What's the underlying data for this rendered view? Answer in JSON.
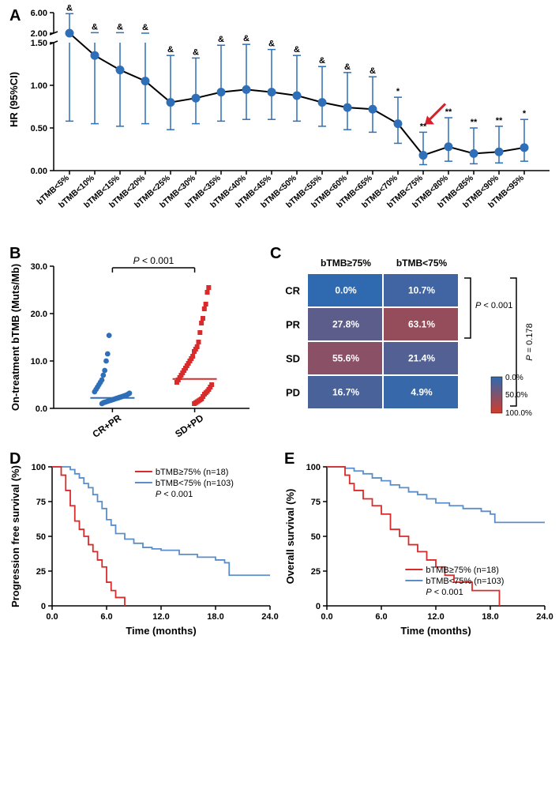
{
  "panelA": {
    "label": "A",
    "ylabel": "HR (95%CI)",
    "y_breaks_low": [
      0.0,
      0.5,
      1.0,
      1.5
    ],
    "y_breaks_high": [
      2.0,
      6.0
    ],
    "categories": [
      "bTMB<5%",
      "bTMB<10%",
      "bTMB<15%",
      "bTMB<20%",
      "bTMB<25%",
      "bTMB<30%",
      "bTMB<35%",
      "bTMB<40%",
      "bTMB<45%",
      "bTMB<50%",
      "bTMB<55%",
      "bTMB<60%",
      "bTMB<65%",
      "bTMB<70%",
      "bTMB<75%",
      "bTMB<80%",
      "bTMB<85%",
      "bTMB<90%",
      "bTMB<95%"
    ],
    "hr": [
      1.55,
      1.35,
      1.18,
      1.05,
      0.8,
      0.85,
      0.92,
      0.95,
      0.92,
      0.88,
      0.8,
      0.74,
      0.72,
      0.55,
      0.18,
      0.28,
      0.2,
      0.22,
      0.27
    ],
    "low": [
      0.58,
      0.55,
      0.52,
      0.55,
      0.48,
      0.55,
      0.58,
      0.6,
      0.6,
      0.58,
      0.52,
      0.48,
      0.45,
      0.32,
      0.07,
      0.11,
      0.08,
      0.09,
      0.11
    ],
    "high": [
      5.8,
      2.1,
      2.1,
      1.75,
      1.35,
      1.32,
      1.47,
      1.48,
      1.42,
      1.35,
      1.22,
      1.15,
      1.1,
      0.86,
      0.45,
      0.62,
      0.5,
      0.52,
      0.6
    ],
    "sig": [
      "&",
      "&",
      "&",
      "&",
      "&",
      "&",
      "&",
      "&",
      "&",
      "&",
      "&",
      "&",
      "&",
      "*",
      "**",
      "**",
      "**",
      "**",
      "*"
    ],
    "arrow_target_index": 14,
    "colors": {
      "marker": "#2f6fb7",
      "line": "#000000",
      "arrow": "#d8202a"
    }
  },
  "panelB": {
    "label": "B",
    "ylabel": "On-treatment bTMB (Muts/Mb)",
    "xlabels": [
      "CR+PR",
      "SD+PD"
    ],
    "pvalue": "P < 0.001",
    "ylim": [
      0,
      30
    ],
    "ytick_step": 10,
    "median": [
      2.2,
      6.2
    ],
    "points_crpr": [
      1.0,
      1.2,
      1.3,
      1.4,
      1.5,
      1.6,
      1.7,
      1.8,
      1.9,
      2.0,
      2.1,
      2.2,
      2.3,
      2.4,
      2.5,
      2.6,
      2.7,
      2.8,
      3.0,
      3.2,
      3.5,
      4.0,
      4.5,
      5.0,
      5.5,
      6.0,
      7.0,
      8.0,
      10.0,
      11.5,
      15.4
    ],
    "points_sdpd": [
      1.0,
      1.2,
      1.4,
      1.6,
      1.8,
      2.0,
      2.5,
      3.0,
      3.3,
      3.6,
      4.0,
      4.5,
      5.0,
      5.5,
      6.0,
      6.5,
      7.0,
      7.5,
      8.0,
      8.5,
      9.0,
      9.5,
      10.0,
      10.5,
      11.0,
      12.0,
      12.5,
      13.0,
      14.0,
      16.0,
      18.0,
      19.0,
      21.0,
      22.0,
      24.5,
      25.5
    ],
    "colors": {
      "crpr": "#2f6fb7",
      "sdpd": "#d92b2b"
    }
  },
  "panelC": {
    "label": "C",
    "col_labels": [
      "bTMB≥75%",
      "bTMB<75%"
    ],
    "row_labels": [
      "CR",
      "PR",
      "SD",
      "PD"
    ],
    "values": [
      [
        0.0,
        10.7
      ],
      [
        27.8,
        63.1
      ],
      [
        55.6,
        21.4
      ],
      [
        16.7,
        4.9
      ]
    ],
    "pvals": {
      "crpr": "P < 0.001",
      "all": "P = 0.178"
    },
    "scale": {
      "low_color": "#2f6ab0",
      "high_color": "#d23c2a",
      "low_label": "0.0%",
      "mid_label": "50.0%",
      "high_label": "100.0%"
    }
  },
  "panelD": {
    "label": "D",
    "ylabel": "Progression free survival (%)",
    "xlabel": "Time (months)",
    "xlim": [
      0,
      24
    ],
    "xtick_step": 6,
    "ylim": [
      0,
      100
    ],
    "ytick_step": 25,
    "legend_high": "bTMB≥75% (n=18)",
    "legend_low": "bTMB<75% (n=103)",
    "pvalue": "P < 0.001",
    "curve_high": [
      [
        0,
        100
      ],
      [
        1.0,
        94
      ],
      [
        1.5,
        83
      ],
      [
        2.0,
        72
      ],
      [
        2.5,
        61
      ],
      [
        3.0,
        55
      ],
      [
        3.5,
        50
      ],
      [
        4.0,
        44
      ],
      [
        4.5,
        39
      ],
      [
        5.0,
        33
      ],
      [
        5.5,
        28
      ],
      [
        6.0,
        17
      ],
      [
        6.5,
        11
      ],
      [
        7.0,
        6
      ],
      [
        8.0,
        0
      ]
    ],
    "curve_low": [
      [
        0,
        100
      ],
      [
        1.0,
        100
      ],
      [
        2.0,
        98
      ],
      [
        2.5,
        95
      ],
      [
        3.0,
        92
      ],
      [
        3.5,
        88
      ],
      [
        4.0,
        85
      ],
      [
        4.5,
        80
      ],
      [
        5.0,
        75
      ],
      [
        5.5,
        70
      ],
      [
        6.0,
        62
      ],
      [
        6.5,
        58
      ],
      [
        7.0,
        52
      ],
      [
        8.0,
        48
      ],
      [
        9.0,
        45
      ],
      [
        10.0,
        42
      ],
      [
        11.0,
        41
      ],
      [
        12.0,
        40
      ],
      [
        13.5,
        40
      ],
      [
        14.0,
        37
      ],
      [
        16.0,
        35
      ],
      [
        18.0,
        33
      ],
      [
        19.0,
        31
      ],
      [
        19.5,
        22
      ],
      [
        22.0,
        22
      ],
      [
        24.0,
        22
      ]
    ],
    "colors": {
      "high": "#d92b2b",
      "low": "#5b8ec9"
    }
  },
  "panelE": {
    "label": "E",
    "ylabel": "Overall survival (%)",
    "xlabel": "Time (months)",
    "xlim": [
      0,
      24
    ],
    "xtick_step": 6,
    "ylim": [
      0,
      100
    ],
    "ytick_step": 25,
    "legend_high": "bTMB≥75% (n=18)",
    "legend_low": "bTMB<75% (n=103)",
    "pvalue": "P < 0.001",
    "curve_high": [
      [
        0,
        100
      ],
      [
        1.5,
        100
      ],
      [
        2.0,
        94
      ],
      [
        2.5,
        88
      ],
      [
        3.0,
        83
      ],
      [
        4.0,
        77
      ],
      [
        5.0,
        72
      ],
      [
        6.0,
        66
      ],
      [
        7.0,
        55
      ],
      [
        8.0,
        50
      ],
      [
        9.0,
        44
      ],
      [
        10.0,
        39
      ],
      [
        11.0,
        33
      ],
      [
        12.0,
        28
      ],
      [
        13.0,
        22
      ],
      [
        14.0,
        17
      ],
      [
        16.0,
        11
      ],
      [
        18.0,
        11
      ],
      [
        19.0,
        0
      ]
    ],
    "curve_low": [
      [
        0,
        100
      ],
      [
        2.0,
        99
      ],
      [
        3.0,
        97
      ],
      [
        4.0,
        95
      ],
      [
        5.0,
        92
      ],
      [
        6.0,
        90
      ],
      [
        7.0,
        87
      ],
      [
        8.0,
        85
      ],
      [
        9.0,
        82
      ],
      [
        10.0,
        80
      ],
      [
        11.0,
        77
      ],
      [
        12.0,
        74
      ],
      [
        13.5,
        72
      ],
      [
        15.0,
        70
      ],
      [
        17.0,
        68
      ],
      [
        18.0,
        66
      ],
      [
        18.5,
        60
      ],
      [
        21.0,
        60
      ],
      [
        24.0,
        60
      ]
    ],
    "colors": {
      "high": "#d92b2b",
      "low": "#5b8ec9"
    }
  }
}
